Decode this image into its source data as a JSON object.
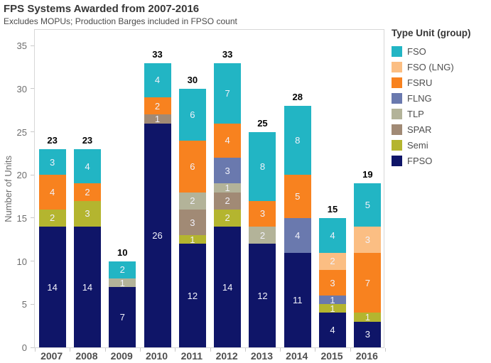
{
  "legend": {
    "title": "Type Unit (group)"
  },
  "chart_data": {
    "type": "bar",
    "stacked": true,
    "title": "FPS Systems Awarded from 2007-2016",
    "subtitle": "Excludes MOPUs; Production Barges included in FPSO count",
    "xlabel": "",
    "ylabel": "Number of Units",
    "ylim": [
      0,
      37
    ],
    "yticks": [
      0,
      5,
      10,
      15,
      20,
      25,
      30,
      35
    ],
    "grid": false,
    "legend_position": "right",
    "categories": [
      "2007",
      "2008",
      "2009",
      "2010",
      "2011",
      "2012",
      "2013",
      "2014",
      "2015",
      "2016"
    ],
    "series": [
      {
        "name": "FPSO",
        "color": "#0F1568",
        "values": [
          14,
          14,
          7,
          26,
          12,
          14,
          12,
          11,
          4,
          3
        ]
      },
      {
        "name": "Semi",
        "color": "#B4B52F",
        "values": [
          2,
          3,
          0,
          0,
          1,
          2,
          0,
          0,
          1,
          1
        ]
      },
      {
        "name": "SPAR",
        "color": "#A18A75",
        "values": [
          0,
          0,
          0,
          1,
          3,
          2,
          0,
          0,
          0,
          0
        ]
      },
      {
        "name": "TLP",
        "color": "#B3B399",
        "values": [
          0,
          0,
          1,
          0,
          2,
          1,
          2,
          0,
          0,
          0
        ]
      },
      {
        "name": "FLNG",
        "color": "#6A79AE",
        "values": [
          0,
          0,
          0,
          0,
          0,
          3,
          0,
          4,
          1,
          0
        ]
      },
      {
        "name": "FSRU",
        "color": "#F8821F",
        "values": [
          4,
          2,
          0,
          2,
          6,
          4,
          3,
          5,
          3,
          7
        ]
      },
      {
        "name": "FSO (LNG)",
        "color": "#FBBE83",
        "values": [
          0,
          0,
          0,
          0,
          0,
          0,
          0,
          0,
          2,
          3
        ]
      },
      {
        "name": "FSO",
        "color": "#22B5C4",
        "values": [
          3,
          4,
          2,
          4,
          6,
          7,
          8,
          8,
          4,
          5
        ]
      }
    ],
    "totals": [
      23,
      23,
      10,
      33,
      30,
      33,
      25,
      28,
      15,
      19
    ]
  }
}
